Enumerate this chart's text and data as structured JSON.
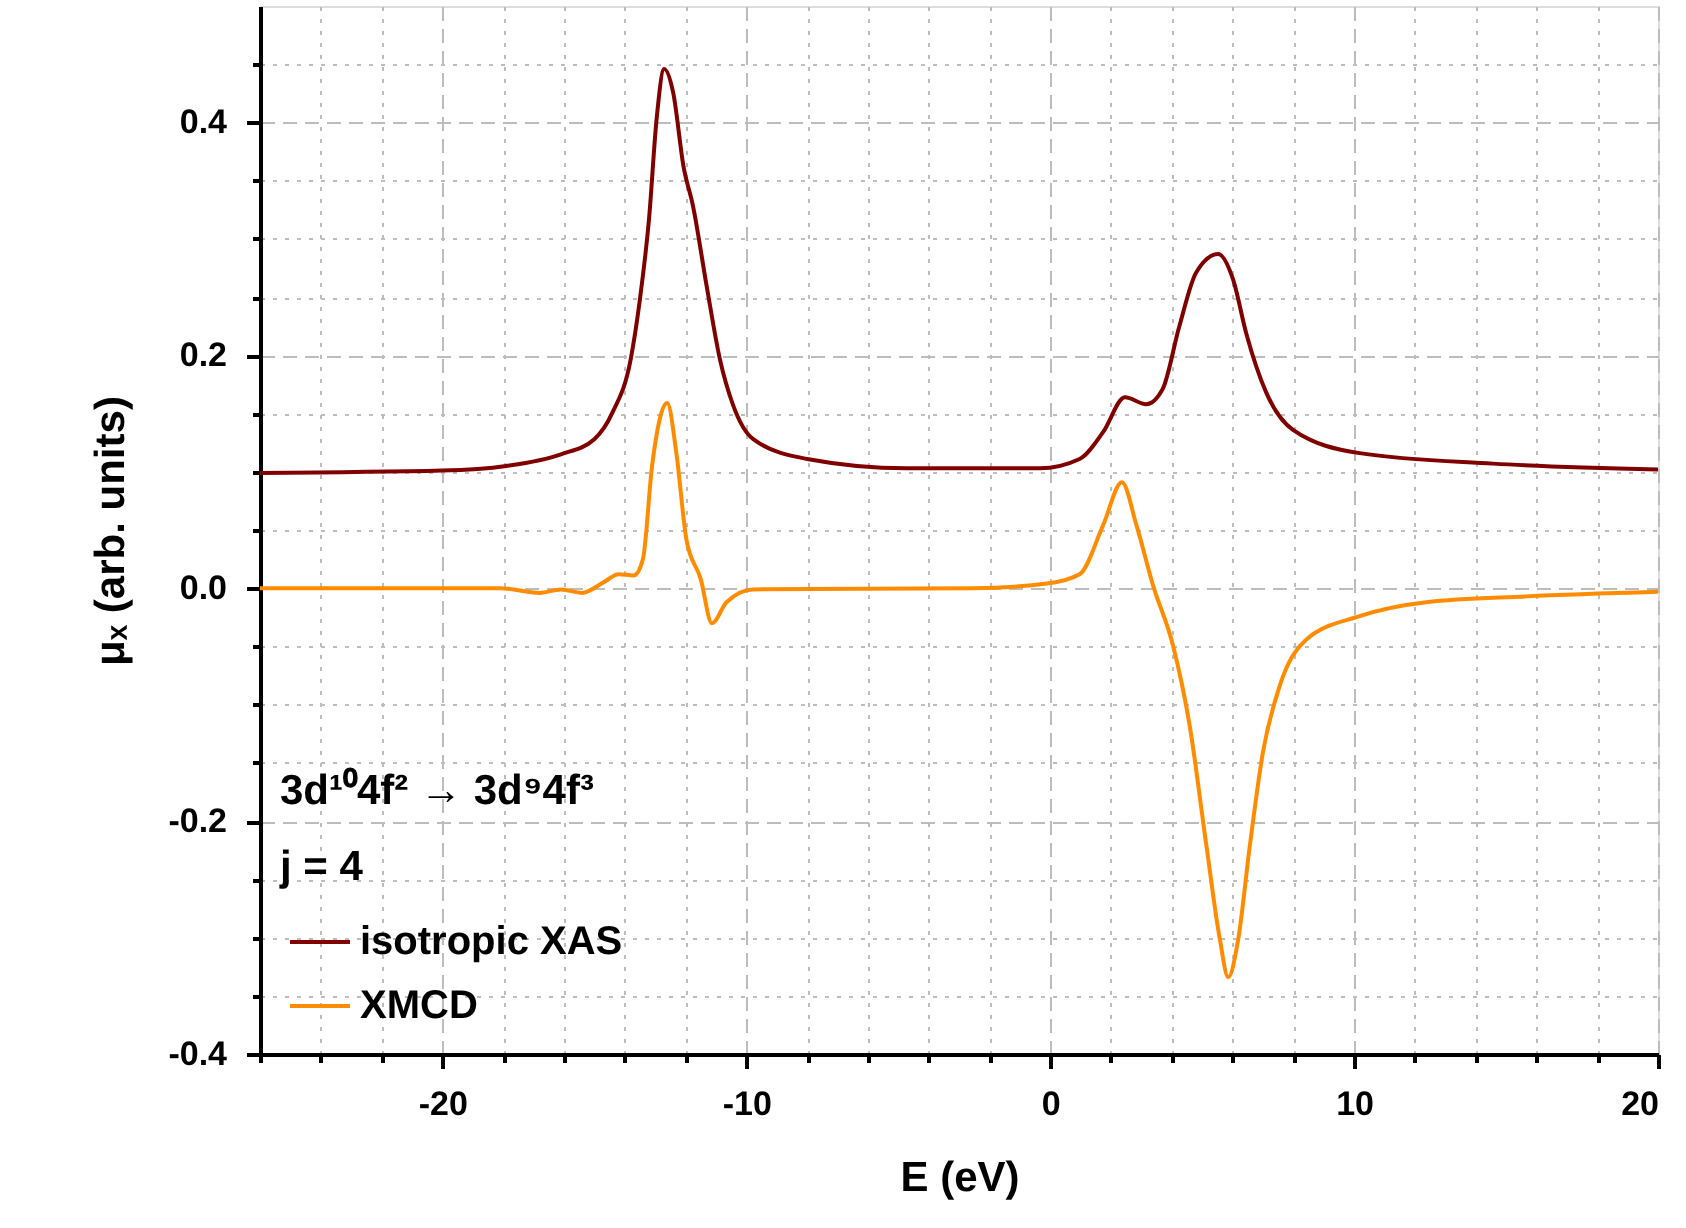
{
  "chart_data": {
    "type": "line",
    "xlabel": "E (eV)",
    "ylabel": "μₓ (arb. units)",
    "xlim": [
      -26,
      20
    ],
    "ylim": [
      -0.4,
      0.5
    ],
    "xticks": [
      {
        "value": -26,
        "label": null
      },
      {
        "value": -24,
        "label": null
      },
      {
        "value": -22,
        "label": null
      },
      -20,
      {
        "value": -18,
        "label": null
      },
      {
        "value": -16,
        "label": null
      },
      {
        "value": -14,
        "label": null
      },
      {
        "value": -12,
        "label": null
      },
      -10,
      {
        "value": -8,
        "label": null
      },
      {
        "value": -6,
        "label": null
      },
      {
        "value": -4,
        "label": null
      },
      {
        "value": -2,
        "label": null
      },
      0,
      {
        "value": 2,
        "label": null
      },
      {
        "value": 4,
        "label": null
      },
      {
        "value": 6,
        "label": null
      },
      {
        "value": 8,
        "label": null
      },
      10,
      {
        "value": 12,
        "label": null
      },
      {
        "value": 14,
        "label": null
      },
      {
        "value": 16,
        "label": null
      },
      {
        "value": 18,
        "label": null
      },
      20
    ],
    "yticks": [
      -0.4,
      {
        "value": -0.35,
        "label": null
      },
      {
        "value": -0.3,
        "label": null
      },
      {
        "value": -0.25,
        "label": null
      },
      -0.2,
      {
        "value": -0.15,
        "label": null
      },
      {
        "value": -0.1,
        "label": null
      },
      {
        "value": -0.05,
        "label": null
      },
      {
        "value": 0,
        "label": "0.0"
      },
      {
        "value": 0.05,
        "label": null
      },
      {
        "value": 0.1,
        "label": null
      },
      {
        "value": 0.15,
        "label": null
      },
      0.2,
      {
        "value": 0.25,
        "label": null
      },
      {
        "value": 0.3,
        "label": null
      },
      {
        "value": 0.35,
        "label": null
      },
      0.4,
      {
        "value": 0.45,
        "label": null
      }
    ],
    "grid": true,
    "legend": "bottom left",
    "marker": "none",
    "line_style": "solid",
    "annotations": [
      "3d¹⁰4f² → 3d⁹4f³",
      "j = 4"
    ],
    "series": [
      {
        "name": "isotropic XAS",
        "color": "#800000",
        "x": [
          -26,
          -20,
          -17.9,
          -16.1,
          -15.0,
          -14.4,
          -13.8,
          -13.5,
          -13.2,
          -12.95,
          -12.7,
          -12.4,
          -12.07,
          -11.75,
          -11.3,
          -10.87,
          -10.43,
          -9.77,
          -8.0,
          -4.73,
          -0.34,
          0.97,
          1.74,
          2.46,
          3.16,
          3.7,
          4.25,
          4.8,
          5.53,
          6.02,
          6.45,
          7.11,
          7.99,
          10.18,
          14.57,
          20
        ],
        "values": [
          0.099,
          0.101,
          0.105,
          0.115,
          0.128,
          0.151,
          0.197,
          0.248,
          0.317,
          0.403,
          0.446,
          0.425,
          0.363,
          0.328,
          0.259,
          0.197,
          0.157,
          0.128,
          0.111,
          0.103,
          0.103,
          0.111,
          0.134,
          0.164,
          0.158,
          0.171,
          0.225,
          0.271,
          0.287,
          0.265,
          0.219,
          0.168,
          0.136,
          0.116,
          0.107,
          0.102
        ]
      },
      {
        "name": "XMCD",
        "color": "#ff8c00",
        "x": [
          -26,
          -18.1,
          -16.8,
          -16.1,
          -15.4,
          -14.7,
          -14.2,
          -13.7,
          -13.4,
          -13.1,
          -12.6,
          -12.3,
          -11.97,
          -11.5,
          -11.13,
          -10.65,
          -9.77,
          -2.54,
          -0.11,
          0.97,
          1.74,
          2.36,
          2.84,
          3.39,
          4.04,
          4.59,
          5.14,
          5.58,
          5.86,
          6.19,
          6.57,
          7.0,
          7.55,
          8.43,
          10.18,
          12.37,
          15.66,
          20
        ],
        "values": [
          0.0,
          0.0,
          -0.004,
          -0.001,
          -0.004,
          0.005,
          0.012,
          0.011,
          0.025,
          0.105,
          0.159,
          0.116,
          0.042,
          0.008,
          -0.03,
          -0.012,
          -0.001,
          0.0,
          0.004,
          0.012,
          0.054,
          0.091,
          0.054,
          0.002,
          -0.049,
          -0.118,
          -0.221,
          -0.301,
          -0.334,
          -0.301,
          -0.221,
          -0.141,
          -0.084,
          -0.044,
          -0.024,
          -0.012,
          -0.007,
          -0.003
        ]
      }
    ]
  }
}
